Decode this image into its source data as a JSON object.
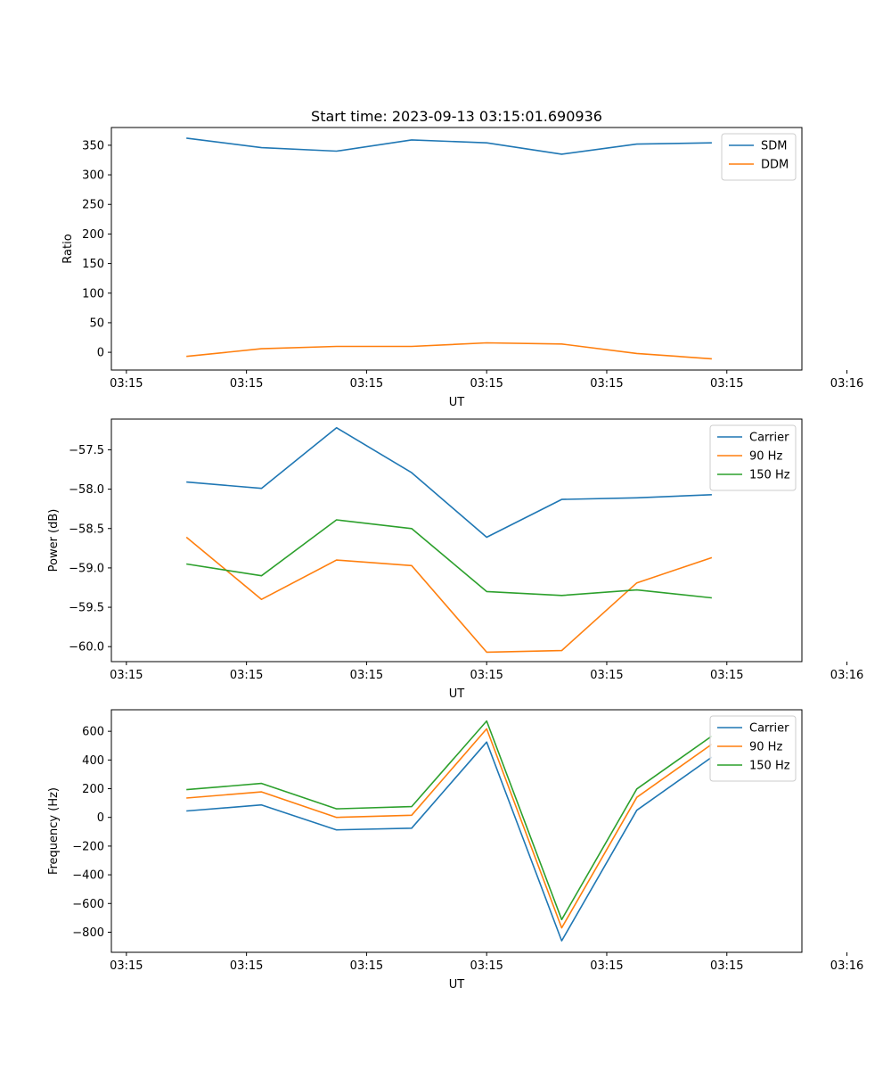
{
  "figure": {
    "title": "Start time: 2023-09-13 03:15:01.690936"
  },
  "chart_data": [
    {
      "type": "line",
      "title": "Start time: 2023-09-13 03:15:01.690936",
      "xlabel": "UT",
      "ylabel": "Ratio",
      "x": [
        1,
        2,
        3,
        4,
        5,
        6,
        7,
        8
      ],
      "xlim": [
        0,
        9.2
      ],
      "x_ticks": [
        0.2,
        1.8,
        3.4,
        5.0,
        6.6,
        8.2,
        9.8
      ],
      "x_tick_labels": [
        "03:15",
        "03:15",
        "03:15",
        "03:15",
        "03:15",
        "03:15",
        "03:16"
      ],
      "ylim": [
        -30,
        380
      ],
      "y_ticks": [
        0,
        50,
        100,
        150,
        200,
        250,
        300,
        350
      ],
      "y_tick_labels": [
        "0",
        "50",
        "100",
        "150",
        "200",
        "250",
        "300",
        "350"
      ],
      "legend_position": "top-right",
      "series": [
        {
          "name": "SDM",
          "color": "#1f77b4",
          "values": [
            362,
            346,
            340,
            359,
            354,
            335,
            352,
            354
          ]
        },
        {
          "name": "DDM",
          "color": "#ff7f0e",
          "values": [
            -7,
            6,
            10,
            10,
            16,
            14,
            -2,
            -11
          ]
        }
      ]
    },
    {
      "type": "line",
      "title": "",
      "xlabel": "UT",
      "ylabel": "Power (dB)",
      "x": [
        1,
        2,
        3,
        4,
        5,
        6,
        7,
        8
      ],
      "xlim": [
        0,
        9.2
      ],
      "x_ticks": [
        0.2,
        1.8,
        3.4,
        5.0,
        6.6,
        8.2,
        9.8
      ],
      "x_tick_labels": [
        "03:15",
        "03:15",
        "03:15",
        "03:15",
        "03:15",
        "03:15",
        "03:16"
      ],
      "ylim": [
        -60.19,
        -57.11
      ],
      "y_ticks": [
        -60.0,
        -59.5,
        -59.0,
        -58.5,
        -58.0,
        -57.5
      ],
      "y_tick_labels": [
        "−60.0",
        "−59.5",
        "−59.0",
        "−58.5",
        "−58.0",
        "−57.5"
      ],
      "legend_position": "top-right",
      "series": [
        {
          "name": "Carrier",
          "color": "#1f77b4",
          "values": [
            -57.91,
            -57.99,
            -57.22,
            -57.79,
            -58.61,
            -58.13,
            -58.11,
            -58.07
          ]
        },
        {
          "name": "90 Hz",
          "color": "#ff7f0e",
          "values": [
            -58.61,
            -59.4,
            -58.9,
            -58.97,
            -60.07,
            -60.05,
            -59.19,
            -58.87
          ]
        },
        {
          "name": "150 Hz",
          "color": "#2ca02c",
          "values": [
            -58.95,
            -59.1,
            -58.39,
            -58.5,
            -59.3,
            -59.35,
            -59.28,
            -59.38
          ]
        }
      ]
    },
    {
      "type": "line",
      "title": "",
      "xlabel": "UT",
      "ylabel": "Frequency (Hz)",
      "x": [
        1,
        2,
        3,
        4,
        5,
        6,
        7,
        8
      ],
      "xlim": [
        0,
        9.2
      ],
      "x_ticks": [
        0.2,
        1.8,
        3.4,
        5.0,
        6.6,
        8.2,
        9.8
      ],
      "x_tick_labels": [
        "03:15",
        "03:15",
        "03:15",
        "03:15",
        "03:15",
        "03:15",
        "03:16"
      ],
      "ylim": [
        -940,
        750
      ],
      "y_ticks": [
        -800,
        -600,
        -400,
        -200,
        0,
        200,
        400,
        600
      ],
      "y_tick_labels": [
        "−800",
        "−600",
        "−400",
        "−200",
        "0",
        "200",
        "400",
        "600"
      ],
      "legend_position": "top-right",
      "series": [
        {
          "name": "Carrier",
          "color": "#1f77b4",
          "values": [
            45,
            87,
            -87,
            -75,
            525,
            -860,
            50,
            420
          ]
        },
        {
          "name": "90 Hz",
          "color": "#ff7f0e",
          "values": [
            135,
            178,
            0,
            15,
            617,
            -770,
            140,
            510
          ]
        },
        {
          "name": "150 Hz",
          "color": "#2ca02c",
          "values": [
            193,
            237,
            60,
            75,
            672,
            -712,
            198,
            567
          ]
        }
      ]
    }
  ]
}
